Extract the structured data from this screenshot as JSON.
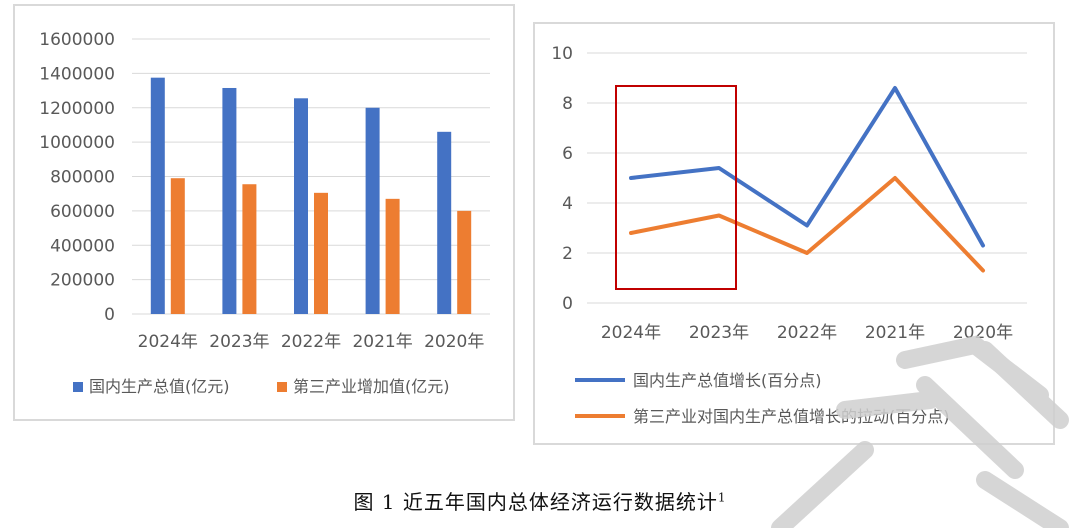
{
  "chart_data": [
    {
      "type": "bar",
      "categories": [
        "2024年",
        "2023年",
        "2022年",
        "2021年",
        "2020年"
      ],
      "series": [
        {
          "name": "国内生产总值(亿元)",
          "values": [
            1375000,
            1315000,
            1255000,
            1200000,
            1060000
          ],
          "color": "#4472C4"
        },
        {
          "name": "第三产业增加值(亿元)",
          "values": [
            790000,
            755000,
            705000,
            670000,
            600000
          ],
          "color": "#ED7D31"
        }
      ],
      "ylim": [
        0,
        1600000
      ],
      "yticks": [
        0,
        200000,
        400000,
        600000,
        800000,
        1000000,
        1200000,
        1400000,
        1600000
      ],
      "grid": true,
      "legend": "bottom"
    },
    {
      "type": "line",
      "categories": [
        "2024年",
        "2023年",
        "2022年",
        "2021年",
        "2020年"
      ],
      "series": [
        {
          "name": "国内生产总值增长(百分点)",
          "values": [
            5.0,
            5.4,
            3.1,
            8.6,
            2.3
          ],
          "color": "#4472C4"
        },
        {
          "name": "第三产业对国内生产总值增长的拉动(百分点)",
          "values": [
            2.8,
            3.5,
            2.0,
            5.0,
            1.3
          ],
          "color": "#ED7D31"
        }
      ],
      "ylim": [
        0,
        10
      ],
      "yticks": [
        0,
        2,
        4,
        6,
        8,
        10
      ],
      "grid": true,
      "legend": "bottom",
      "annotation_box_color": "#C00000"
    }
  ],
  "caption": {
    "label": "图 1 近五年国内总体经济运行数据统计",
    "footnote_mark": "1"
  }
}
